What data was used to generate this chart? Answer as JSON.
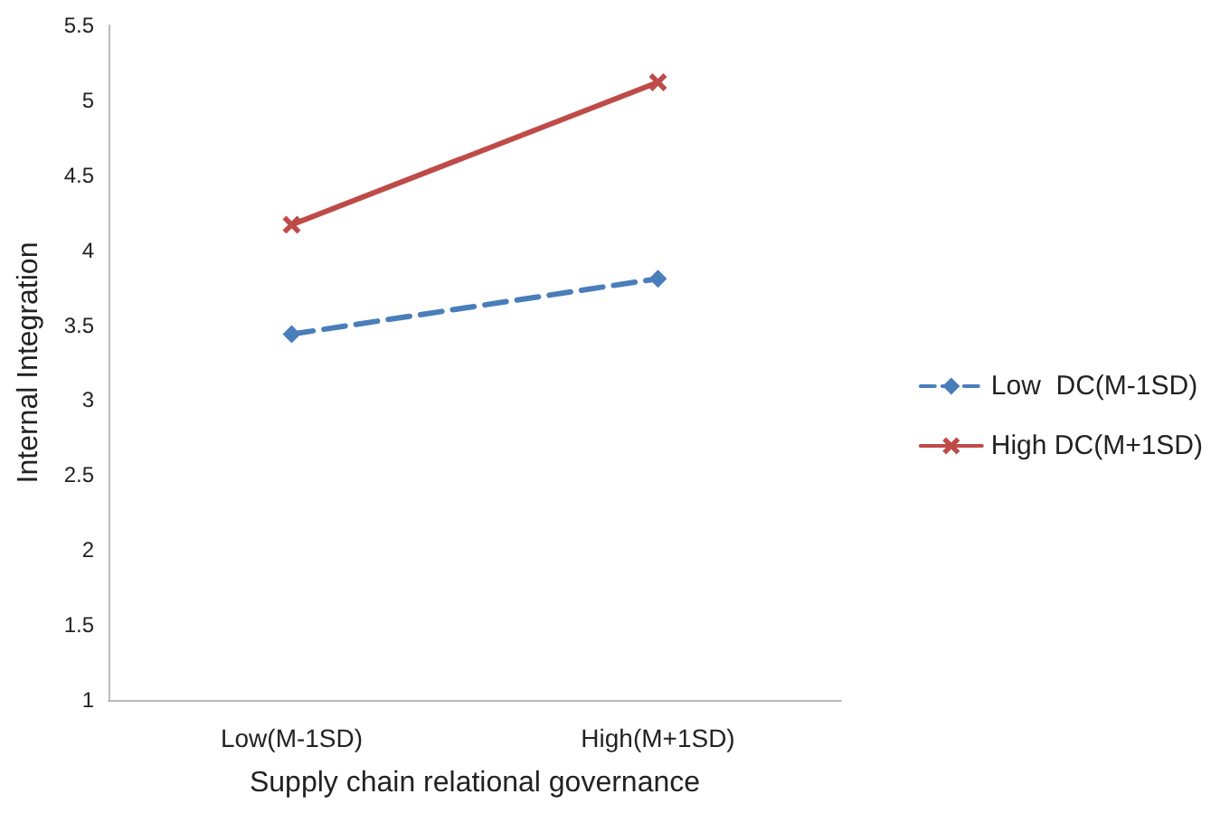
{
  "chart_data": {
    "type": "line",
    "xlabel": "Supply chain relational governance",
    "ylabel": "Internal Integration",
    "categories": [
      "Low(M-1SD)",
      "High(M+1SD)"
    ],
    "series": [
      {
        "name": "Low  DC(M-1SD)",
        "color": "#4a7ebb",
        "values": [
          3.44,
          3.81
        ],
        "line_style": "dashed",
        "marker": "diamond"
      },
      {
        "name": "High DC(M+1SD)",
        "color": "#be4b48",
        "values": [
          4.17,
          5.12
        ],
        "line_style": "solid",
        "marker": "cross"
      }
    ],
    "ylim": [
      1,
      5.5
    ],
    "yticks": [
      1,
      1.5,
      2,
      2.5,
      3,
      3.5,
      4,
      4.5,
      5,
      5.5
    ],
    "grid": false,
    "legend": "right"
  }
}
